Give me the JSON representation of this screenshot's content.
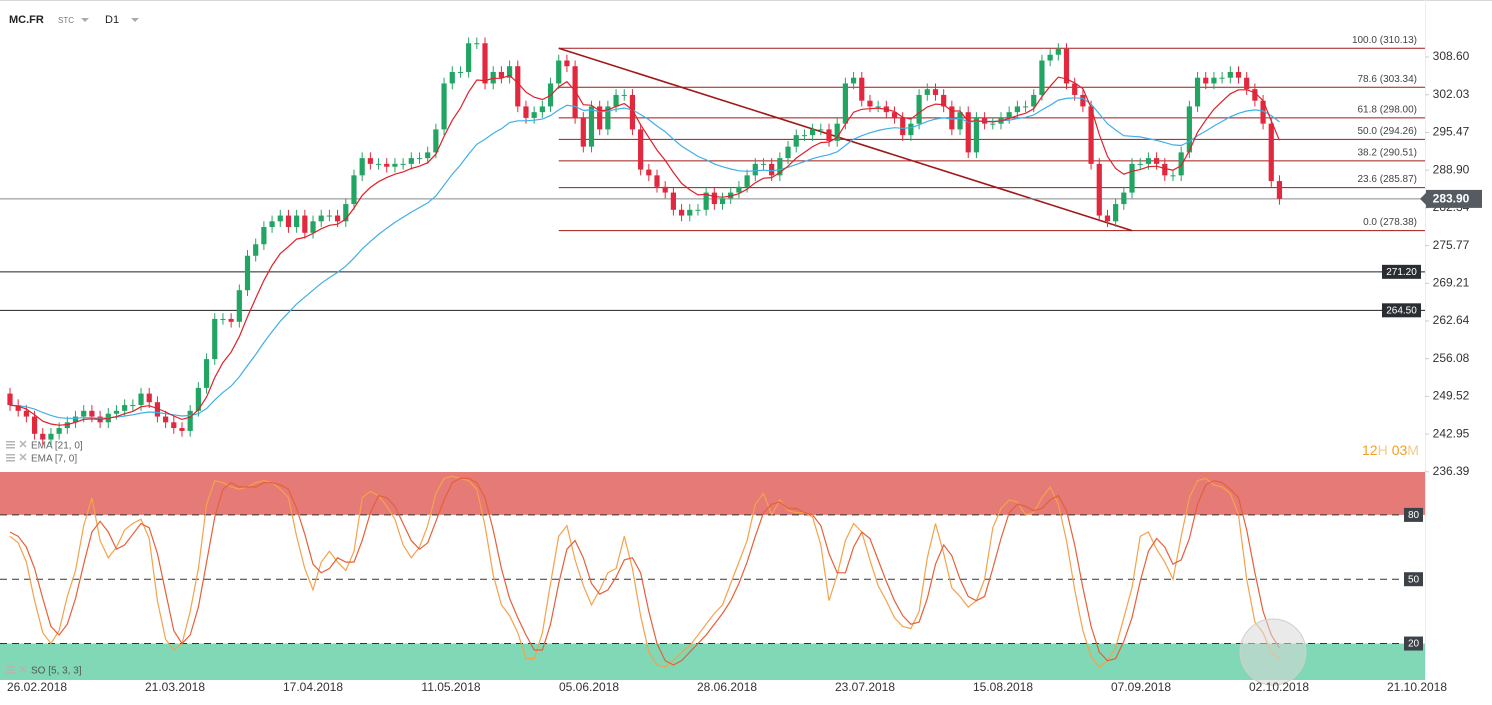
{
  "chart_data": {
    "type": "candlestick",
    "symbol": "MC.FR",
    "instrument_type": "STC",
    "timeframe": "D1",
    "up_color": "#22a463",
    "down_color": "#e2283e",
    "open": [
      250,
      248,
      247,
      246,
      243,
      242,
      243,
      244,
      245,
      246,
      247,
      246,
      245,
      246.5,
      247,
      248,
      248,
      250,
      248.5,
      246,
      245,
      244,
      243.5,
      247,
      251,
      256,
      263,
      263,
      262.5,
      268,
      274,
      276,
      279,
      280,
      281,
      279,
      281,
      278,
      280,
      281,
      281,
      280,
      283,
      288,
      291,
      290,
      290,
      289.5,
      290,
      290,
      291,
      291,
      292,
      296,
      304,
      306,
      306,
      311,
      311,
      304,
      306,
      305,
      307,
      300,
      298,
      299,
      300,
      304,
      308,
      307,
      298,
      293,
      300,
      296,
      300,
      302,
      302,
      296,
      289,
      288,
      286,
      285,
      282,
      281,
      282,
      282,
      285,
      283,
      284,
      285,
      286,
      288,
      290,
      290,
      288,
      291,
      293,
      295,
      295,
      296,
      296,
      294,
      297,
      304,
      305,
      301,
      300,
      300,
      299,
      298,
      295,
      297,
      302,
      303,
      302,
      300,
      296,
      299,
      292,
      298,
      297,
      297,
      298,
      299,
      300,
      300,
      302,
      308,
      309,
      310,
      304,
      302,
      300,
      290,
      281,
      280,
      283,
      285,
      290,
      290,
      291,
      290,
      288,
      288,
      292,
      300,
      305,
      304,
      305,
      305,
      306,
      305,
      303,
      301,
      297,
      287
    ],
    "high": [
      251,
      249,
      248,
      247,
      244,
      244,
      245,
      246,
      247,
      248,
      248,
      247,
      247.5,
      248,
      249,
      249,
      251,
      251,
      249.5,
      247,
      246,
      245,
      248,
      252,
      257,
      264,
      264,
      264,
      269,
      275,
      277,
      280,
      281,
      282,
      282,
      282,
      282,
      281,
      282,
      282,
      282,
      284,
      289,
      292,
      292,
      291,
      291,
      291,
      291,
      292,
      292,
      293,
      297,
      305,
      307,
      307,
      312,
      312,
      312,
      307,
      307,
      308,
      308,
      301,
      300,
      301,
      305,
      309,
      309,
      308,
      299,
      301,
      301,
      301,
      303,
      303,
      303,
      297,
      290,
      289,
      287,
      286,
      283,
      283,
      283,
      286,
      286,
      285,
      286,
      287,
      289,
      291,
      291,
      291,
      292,
      294,
      296,
      296,
      297,
      297,
      297,
      298,
      305,
      306,
      306,
      302,
      301,
      301,
      300,
      299,
      298,
      303,
      304,
      304,
      303,
      301,
      300,
      300,
      299,
      299,
      298,
      299,
      300,
      301,
      301,
      303,
      309,
      310,
      311,
      311,
      305,
      303,
      301,
      291,
      282,
      284,
      286,
      291,
      291,
      292,
      292,
      291,
      289,
      293,
      301,
      306,
      306,
      306,
      306,
      307,
      307,
      306,
      304,
      302,
      298,
      288
    ],
    "low": [
      247,
      246,
      245,
      242,
      241,
      241,
      242,
      243,
      244,
      245,
      245,
      244,
      244,
      245.5,
      246,
      247,
      247,
      247.5,
      245,
      244,
      243,
      242.5,
      242.5,
      246,
      250,
      255,
      262,
      261.5,
      261.5,
      267,
      273,
      275,
      278,
      279,
      278,
      278,
      277,
      277,
      279,
      280,
      279,
      279,
      282,
      287,
      289,
      289,
      288.5,
      288.5,
      289,
      289,
      290,
      290,
      291,
      295,
      303,
      305,
      305,
      310,
      303,
      303,
      304,
      304,
      299,
      297,
      297,
      298,
      299,
      303,
      306,
      297,
      292,
      292,
      295,
      295,
      299,
      301,
      295,
      288,
      287,
      285,
      284,
      281,
      280,
      280,
      281,
      281,
      282,
      282,
      283,
      284,
      285,
      287,
      289,
      287,
      287,
      290,
      292,
      294,
      294,
      295,
      293,
      293,
      296,
      303,
      300,
      299,
      299,
      298,
      297,
      294,
      294,
      296,
      301,
      301,
      299,
      295,
      295,
      291,
      291,
      296,
      296,
      296,
      297,
      298,
      299,
      299,
      301,
      307,
      308,
      303,
      301,
      299,
      289,
      280,
      279,
      279,
      282,
      284,
      289,
      289,
      289,
      287,
      287,
      287,
      291,
      299,
      303,
      303,
      304,
      304,
      304,
      302,
      300,
      296,
      286,
      282.9
    ],
    "close": [
      248,
      247,
      246,
      243,
      242,
      243,
      244,
      245,
      246,
      247,
      246,
      245,
      246.5,
      247,
      248,
      248,
      250,
      248.5,
      246,
      245,
      244,
      243.5,
      247,
      251,
      256,
      263,
      263,
      262.5,
      268,
      274,
      276,
      279,
      280,
      281,
      279,
      281,
      278,
      280,
      281,
      281,
      280,
      283,
      288,
      291,
      290,
      290,
      289.5,
      290,
      290,
      291,
      291,
      292,
      296,
      304,
      306,
      306,
      311,
      311,
      304,
      306,
      305,
      307,
      300,
      298,
      299,
      300,
      304,
      308,
      307,
      298,
      293,
      300,
      296,
      300,
      302,
      302,
      296,
      289,
      288,
      286,
      285,
      282,
      281,
      282,
      282,
      285,
      283,
      284,
      285,
      286,
      288,
      290,
      290,
      288,
      291,
      293,
      295,
      295,
      296,
      296,
      294,
      297,
      304,
      305,
      301,
      300,
      300,
      299,
      298,
      295,
      297,
      302,
      303,
      302,
      300,
      296,
      299,
      292,
      298,
      297,
      297,
      298,
      299,
      300,
      300,
      302,
      308,
      309,
      310,
      304,
      302,
      300,
      290,
      281,
      280,
      283,
      285,
      290,
      290,
      291,
      290,
      288,
      288,
      292,
      300,
      305,
      304,
      305,
      305,
      306,
      305,
      303,
      301,
      297,
      287,
      283.9
    ],
    "ylim": [
      236.0,
      314.7
    ],
    "yticks": [
      {
        "value": 308.6,
        "label": "308.60"
      },
      302.03,
      295.47,
      {
        "value": 288.9,
        "label": "288.90"
      },
      282.34,
      275.77,
      269.21,
      262.64,
      256.08,
      249.52,
      242.95,
      236.39
    ],
    "xtick_labels": [
      "26.02.2018",
      "21.03.2018",
      "17.04.2018",
      "11.05.2018",
      "05.06.2018",
      "28.06.2018",
      "23.07.2018",
      "15.08.2018",
      "07.09.2018",
      "02.10.2018",
      "21.10.2018"
    ],
    "overlays": [
      {
        "name": "EMA [21, 0]",
        "color": "#3fb0e6",
        "values": [
          248,
          247.9,
          247.7,
          247.3,
          246.7,
          246.2,
          245.8,
          245.7,
          245.7,
          245.8,
          245.8,
          245.7,
          245.8,
          245.9,
          246.1,
          246.3,
          246.6,
          246.8,
          246.7,
          246.5,
          246.3,
          246.1,
          246.2,
          246.5,
          247.4,
          248.9,
          250.2,
          251.3,
          252.9,
          254.9,
          256.8,
          258.9,
          260.8,
          262.6,
          264.1,
          265.6,
          266.8,
          268,
          269.2,
          270.2,
          271.1,
          272.2,
          273.6,
          275.2,
          276.5,
          277.7,
          278.8,
          279.8,
          280.7,
          281.6,
          282.4,
          283.2,
          284.4,
          286.3,
          288.2,
          289.8,
          291.7,
          293.4,
          294.3,
          295.3,
          296.1,
          297.2,
          297.5,
          297.5,
          297.6,
          297.8,
          298.4,
          299.4,
          300.2,
          300,
          299.3,
          299.4,
          299.1,
          299.2,
          299.5,
          299.7,
          299.4,
          298.6,
          297.7,
          296.6,
          295.6,
          294.3,
          293.1,
          292.2,
          291.3,
          290.7,
          290,
          289.5,
          289.1,
          288.8,
          288.7,
          288.8,
          288.9,
          288.8,
          289,
          289.4,
          289.9,
          290.4,
          290.9,
          291.3,
          291.6,
          292.1,
          293.2,
          294.3,
          294.9,
          295.4,
          295.8,
          296.1,
          296.3,
          296.2,
          296.3,
          296.8,
          297.4,
          297.8,
          298,
          297.8,
          297.9,
          297.3,
          297.4,
          297.4,
          297.4,
          297.5,
          297.6,
          297.9,
          298.1,
          298.5,
          299.4,
          300.2,
          301.1,
          301.4,
          301.5,
          301.4,
          300.4,
          298.7,
          297,
          295.9,
          294.9,
          294.8,
          294.7,
          294.4,
          294.1,
          293.7,
          293.3,
          293.2,
          293.9,
          294.9,
          295.7,
          296.6,
          297.4,
          298.2,
          298.8,
          299.2,
          299.4,
          299.2,
          298.4,
          297.3
        ]
      },
      {
        "name": "EMA [7, 0]",
        "color": "#e0202a",
        "values": [
          248,
          247.8,
          247.3,
          246.3,
          245.2,
          244.7,
          244.5,
          244.6,
          245,
          245.5,
          245.6,
          245.5,
          245.7,
          246,
          246.5,
          246.9,
          247.7,
          247.9,
          247.4,
          246.8,
          246.1,
          245.5,
          245.9,
          247.2,
          249.4,
          252.8,
          255.4,
          257.2,
          259.9,
          263.4,
          266.6,
          269.7,
          272.3,
          274.4,
          275.6,
          276.9,
          277.2,
          277.9,
          278.7,
          279.3,
          279.5,
          280.4,
          282.3,
          284.5,
          285.9,
          286.9,
          287.6,
          288.2,
          288.6,
          289.2,
          289.6,
          290.2,
          291.7,
          294.8,
          297.6,
          299.7,
          302.5,
          304.6,
          304.5,
          304.9,
          304.9,
          305.4,
          304.1,
          302.5,
          301.6,
          301.2,
          301.9,
          303.4,
          304.3,
          302.7,
          300.3,
          300.2,
          299.2,
          299.4,
          300,
          300.5,
          299.4,
          296.8,
          294.6,
          292.4,
          290.6,
          288.5,
          286.6,
          285.5,
          284.6,
          284.7,
          284.3,
          284.2,
          284.4,
          284.8,
          285.6,
          286.7,
          287.5,
          287.6,
          288.5,
          289.6,
          291,
          292,
          293,
          293.7,
          293.8,
          294.6,
          296.9,
          299,
          299.5,
          299.6,
          299.7,
          299.5,
          299.1,
          298.1,
          297.8,
          298.9,
          299.9,
          300.4,
          300.3,
          299.2,
          299.2,
          297.4,
          297.5,
          297.4,
          297.3,
          297.5,
          297.9,
          298.4,
          298.8,
          299.6,
          301.7,
          303.5,
          305.1,
          304.8,
          304.1,
          303.1,
          299.8,
          295.1,
          291.3,
          289.2,
          288.2,
          288.7,
          289,
          289.5,
          289.6,
          289.2,
          288.9,
          289.7,
          292.3,
          295.5,
          297.6,
          299.5,
          300.9,
          302.2,
          302.9,
          302.9,
          302.4,
          301,
          297.5,
          294.1
        ]
      }
    ],
    "trendline": {
      "color": "#a01818",
      "start": {
        "index": 67,
        "price": 310.13
      },
      "end": {
        "index": 137,
        "price": 278.38
      }
    },
    "fibonacci": {
      "color": "#a01818",
      "levels": [
        {
          "label": "100.0 (310.13)",
          "value": 310.13
        },
        {
          "label": "78.6 (303.34)",
          "value": 303.34
        },
        {
          "label": "61.8 (298.00)",
          "value": 298.0
        },
        {
          "label": "50.0 (294.26)",
          "value": 294.26
        },
        {
          "label": "38.2 (290.51)",
          "value": 290.51
        },
        {
          "label": "23.6 (285.87)",
          "value": 285.87
        },
        {
          "label": "0.0 (278.38)",
          "value": 278.38
        }
      ]
    },
    "hlines": [
      {
        "value": 271.2,
        "label": "271.20"
      },
      {
        "value": 264.5,
        "label": "264.50"
      }
    ],
    "last_price": {
      "value": 283.9,
      "label": "283.90"
    },
    "countdown": [
      "12",
      "H",
      "03",
      "M"
    ],
    "oscillator": {
      "name": "SO [5, 3, 3]",
      "ylim": [
        3,
        100
      ],
      "levels": [
        80,
        50,
        20
      ],
      "overbought_color": "#e57a76",
      "oversold_color": "#80d8b6",
      "series": [
        {
          "color": "#f4a24c",
          "values": [
            70,
            67,
            58,
            40,
            25,
            20,
            26,
            42,
            54,
            75,
            88,
            68,
            60,
            65,
            73,
            76,
            78,
            69,
            40,
            22,
            17,
            20,
            35,
            55,
            85,
            96,
            95,
            93,
            92,
            93,
            95,
            96,
            95,
            92,
            88,
            70,
            55,
            45,
            58,
            63,
            58,
            54,
            63,
            88,
            91,
            89,
            84,
            78,
            66,
            60,
            65,
            75,
            90,
            97,
            98,
            97,
            96,
            92,
            75,
            52,
            38,
            33,
            25,
            13,
            13,
            25,
            48,
            70,
            75,
            59,
            47,
            38,
            45,
            53,
            55,
            70,
            55,
            33,
            16,
            10,
            9,
            12,
            16,
            19,
            24,
            29,
            34,
            38,
            48,
            58,
            68,
            85,
            90,
            80,
            87,
            82,
            81,
            81,
            79,
            66,
            40,
            52,
            68,
            76,
            72,
            59,
            47,
            40,
            32,
            28,
            27,
            35,
            60,
            76,
            62,
            46,
            42,
            37,
            40,
            50,
            74,
            83,
            87,
            86,
            80,
            81,
            88,
            93,
            85,
            68,
            45,
            26,
            14,
            9,
            12,
            18,
            32,
            46,
            70,
            72,
            64,
            58,
            50,
            70,
            88,
            96,
            97,
            94,
            93,
            90,
            80,
            50,
            30,
            25,
            16,
            13
          ]
        },
        {
          "color": "#e5603a",
          "values": [
            72,
            70,
            65,
            55,
            41,
            28,
            24,
            29,
            41,
            57,
            72,
            77,
            72,
            64,
            66,
            71,
            76,
            74,
            62,
            44,
            26,
            20,
            24,
            37,
            58,
            79,
            92,
            95,
            93,
            93,
            93,
            95,
            95,
            94,
            92,
            83,
            71,
            57,
            53,
            55,
            60,
            58,
            58,
            68,
            81,
            89,
            88,
            84,
            76,
            68,
            64,
            67,
            77,
            87,
            95,
            97,
            97,
            95,
            88,
            73,
            55,
            41,
            32,
            24,
            17,
            17,
            29,
            48,
            64,
            68,
            60,
            48,
            43,
            45,
            51,
            59,
            60,
            53,
            35,
            20,
            12,
            10,
            12,
            16,
            20,
            24,
            29,
            34,
            40,
            48,
            58,
            70,
            81,
            85,
            86,
            83,
            83,
            81,
            80,
            75,
            62,
            53,
            53,
            65,
            72,
            69,
            59,
            49,
            40,
            33,
            29,
            30,
            41,
            57,
            66,
            61,
            50,
            42,
            40,
            42,
            55,
            69,
            81,
            85,
            84,
            82,
            83,
            87,
            89,
            82,
            66,
            46,
            28,
            16,
            12,
            13,
            21,
            32,
            49,
            63,
            69,
            65,
            57,
            59,
            69,
            85,
            94,
            96,
            95,
            92,
            88,
            73,
            53,
            35,
            24,
            18
          ]
        }
      ]
    }
  }
}
